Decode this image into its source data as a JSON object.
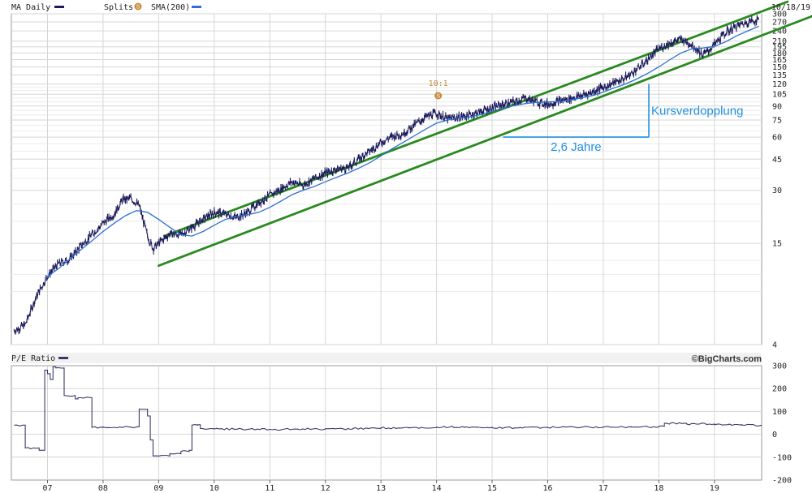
{
  "header": {
    "series_label": "MA Daily",
    "splits_label": "Splits",
    "splits_badge": "S",
    "sma_label": "SMA(200)",
    "date_label": "10/18/19"
  },
  "lower_header": {
    "pe_label": "P/E Ratio",
    "brand": "©BigCharts.com"
  },
  "annotations": {
    "split_ratio": "10:1",
    "split_badge": "S",
    "doubling_label": "Kursverdopplung",
    "years_label": "2,6 Jahre"
  },
  "colors": {
    "price": "#1c1c5c",
    "sma": "#2f6fd0",
    "channel": "#2a8a1f",
    "annotation": "#1f8fe0",
    "split": "#c98a3a",
    "grid": "#d6d6d6",
    "pe": "#3a3a6a"
  },
  "chart_data": [
    {
      "type": "line",
      "title": "",
      "y_scale": "log",
      "ylim": [
        4,
        300
      ],
      "y_ticks": [
        "300",
        "270",
        "240",
        "210",
        "195",
        "180",
        "165",
        "150",
        "135",
        "120",
        "105",
        "90",
        "75",
        "60",
        "45",
        "30",
        "15",
        "4"
      ],
      "x_ticks": [
        "07",
        "08",
        "09",
        "10",
        "11",
        "12",
        "13",
        "14",
        "15",
        "16",
        "17",
        "18",
        "19"
      ],
      "grid": true,
      "series": [
        {
          "name": "MA Daily",
          "style": "price-bars",
          "x": [
            2006.4,
            2006.6,
            2006.8,
            2007.0,
            2007.2,
            2007.4,
            2007.6,
            2007.8,
            2008.0,
            2008.2,
            2008.35,
            2008.5,
            2008.65,
            2008.8,
            2008.9,
            2009.0,
            2009.2,
            2009.4,
            2009.6,
            2009.8,
            2010.0,
            2010.2,
            2010.4,
            2010.6,
            2010.8,
            2011.0,
            2011.2,
            2011.4,
            2011.6,
            2011.8,
            2012.0,
            2012.2,
            2012.4,
            2012.6,
            2012.8,
            2013.0,
            2013.2,
            2013.4,
            2013.6,
            2013.8,
            2014.0,
            2014.2,
            2014.4,
            2014.6,
            2014.8,
            2015.0,
            2015.2,
            2015.4,
            2015.6,
            2015.8,
            2016.0,
            2016.2,
            2016.4,
            2016.6,
            2016.8,
            2017.0,
            2017.2,
            2017.4,
            2017.6,
            2017.8,
            2018.0,
            2018.2,
            2018.4,
            2018.6,
            2018.8,
            2019.0,
            2019.2,
            2019.4,
            2019.6,
            2019.8
          ],
          "y": [
            4.8,
            5.2,
            7.5,
            9.8,
            11.5,
            12.2,
            14.5,
            16.8,
            19.5,
            22.0,
            26.5,
            27.0,
            24.5,
            16.5,
            14.0,
            15.0,
            17.0,
            16.8,
            18.5,
            20.5,
            22.5,
            22.0,
            21.0,
            22.5,
            25.5,
            28.0,
            30.5,
            33.5,
            32.0,
            35.0,
            37.5,
            39.5,
            40.0,
            45.0,
            50.0,
            56.0,
            60.5,
            63.0,
            70.0,
            78.0,
            82.0,
            76.0,
            78.0,
            80.0,
            84.0,
            88.0,
            92.0,
            95.0,
            100.0,
            95.0,
            92.0,
            96.0,
            99.0,
            103.0,
            108.0,
            115.0,
            122.0,
            130.0,
            145.0,
            165.0,
            190.0,
            205.0,
            215.0,
            200.0,
            175.0,
            200.0,
            235.0,
            255.0,
            270.0,
            278.0
          ]
        },
        {
          "name": "SMA(200)",
          "x": [
            2006.95,
            2007.2,
            2007.4,
            2007.6,
            2007.8,
            2008.0,
            2008.2,
            2008.4,
            2008.6,
            2008.8,
            2009.0,
            2009.2,
            2009.4,
            2009.6,
            2009.8,
            2010.0,
            2010.2,
            2010.4,
            2010.6,
            2010.8,
            2011.0,
            2011.2,
            2011.4,
            2011.6,
            2011.8,
            2012.0,
            2012.2,
            2012.4,
            2012.6,
            2012.8,
            2013.0,
            2013.2,
            2013.4,
            2013.6,
            2013.8,
            2014.0,
            2014.2,
            2014.4,
            2014.6,
            2014.8,
            2015.0,
            2015.2,
            2015.4,
            2015.6,
            2015.8,
            2016.0,
            2016.2,
            2016.4,
            2016.6,
            2016.8,
            2017.0,
            2017.2,
            2017.4,
            2017.6,
            2017.8,
            2018.0,
            2018.2,
            2018.4,
            2018.6,
            2018.8,
            2019.0,
            2019.2,
            2019.4,
            2019.6,
            2019.8
          ],
          "y": [
            9.5,
            10.8,
            12.2,
            13.8,
            15.5,
            17.5,
            19.5,
            21.5,
            23.0,
            22.5,
            20.5,
            18.5,
            16.8,
            16.5,
            17.5,
            19.0,
            20.5,
            21.3,
            21.8,
            22.5,
            24.0,
            26.0,
            28.3,
            30.0,
            31.5,
            33.5,
            35.5,
            37.5,
            40.0,
            43.0,
            47.0,
            51.5,
            56.0,
            61.0,
            66.5,
            72.0,
            75.0,
            76.5,
            78.0,
            80.5,
            84.0,
            87.5,
            90.5,
            93.0,
            94.5,
            95.0,
            95.5,
            97.5,
            100.0,
            103.0,
            108.0,
            114.0,
            120.0,
            128.0,
            138.0,
            150.0,
            165.0,
            180.0,
            190.0,
            192.0,
            196.0,
            208.0,
            225.0,
            240.0,
            255.0
          ]
        },
        {
          "name": "channel-upper",
          "x": [
            2009.1,
            2019.8
          ],
          "y": [
            16.5,
            305.0
          ]
        },
        {
          "name": "channel-lower",
          "x": [
            2009.0,
            2019.85
          ],
          "y": [
            11.2,
            226.0
          ]
        }
      ],
      "annotations": [
        {
          "label": "10:1",
          "x": 2014.03,
          "kind": "split"
        },
        {
          "label": "Kursverdopplung",
          "x_start": 2015.2,
          "x_end": 2017.82,
          "y_start": 60.0,
          "y_end": 120.0,
          "kind": "doubling"
        }
      ]
    },
    {
      "type": "line",
      "title": "",
      "ylim": [
        -200,
        300
      ],
      "y_ticks": [
        "300",
        "200",
        "100",
        "0",
        "-100",
        "-200"
      ],
      "x_ticks": [
        "07",
        "08",
        "09",
        "10",
        "11",
        "12",
        "13",
        "14",
        "15",
        "16",
        "17",
        "18",
        "19"
      ],
      "grid": true,
      "series": [
        {
          "name": "P/E Ratio",
          "x": [
            2006.4,
            2006.55,
            2006.6,
            2006.85,
            2006.9,
            2006.95,
            2007.0,
            2007.05,
            2007.1,
            2007.15,
            2007.3,
            2007.5,
            2007.55,
            2007.6,
            2007.8,
            2008.0,
            2008.3,
            2008.6,
            2008.65,
            2008.8,
            2008.85,
            2008.9,
            2009.0,
            2009.2,
            2009.4,
            2009.55,
            2009.6,
            2009.7,
            2009.75,
            2009.8,
            2010.0,
            2010.5,
            2011.0,
            2011.5,
            2012.0,
            2012.5,
            2013.0,
            2013.5,
            2014.0,
            2014.5,
            2015.0,
            2015.5,
            2016.0,
            2016.5,
            2017.0,
            2017.5,
            2018.0,
            2018.1,
            2018.5,
            2019.0,
            2019.5,
            2019.85
          ],
          "y": [
            40,
            40,
            -60,
            -70,
            -70,
            280,
            265,
            240,
            295,
            290,
            170,
            155,
            160,
            160,
            30,
            32,
            32,
            33,
            110,
            80,
            -25,
            -95,
            -95,
            -85,
            -75,
            -70,
            40,
            42,
            25,
            24,
            23,
            22,
            22,
            23,
            24,
            26,
            28,
            29,
            32,
            30,
            29,
            30,
            30,
            31,
            32,
            33,
            35,
            48,
            45,
            42,
            40,
            41
          ]
        }
      ]
    }
  ]
}
